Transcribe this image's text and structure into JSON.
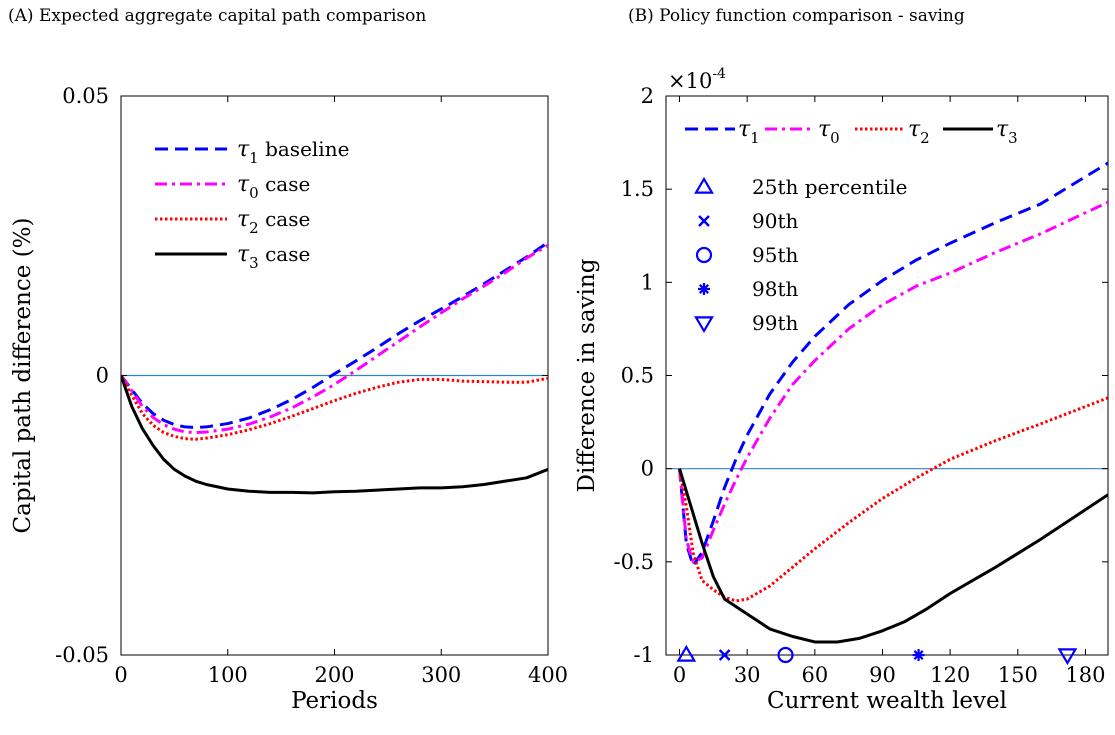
{
  "panels": {
    "a": {
      "title": "(A) Expected aggregate capital path comparison"
    },
    "b": {
      "title": "(B) Policy function comparison - saving"
    }
  },
  "chart_data": [
    {
      "type": "line",
      "title": "(A) Expected aggregate capital path comparison",
      "xlabel": "Periods",
      "ylabel": "Capital path difference (%)",
      "xlim": [
        0,
        400
      ],
      "ylim": [
        -0.05,
        0.05
      ],
      "xticks": [
        0,
        100,
        200,
        300,
        400
      ],
      "xtick_labels": [
        "0",
        "100",
        "200",
        "300",
        "400"
      ],
      "yticks": [
        -0.05,
        0,
        0.05
      ],
      "ytick_labels": [
        "-0.05",
        "0",
        "0.05"
      ],
      "grid": false,
      "legend_position": "upper-left",
      "reference_line": {
        "y": 0,
        "color": "#2E86C1"
      },
      "series": [
        {
          "name": "τ1 baseline",
          "legend_symbol": "τ",
          "legend_sub": "1",
          "legend_suffix": " baseline",
          "color": "#0000FF",
          "style": "dashed",
          "x": [
            0,
            10,
            20,
            30,
            40,
            50,
            60,
            70,
            80,
            100,
            120,
            140,
            160,
            180,
            200,
            220,
            240,
            260,
            280,
            300,
            320,
            340,
            360,
            380,
            400
          ],
          "y": [
            0,
            -0.0025,
            -0.005,
            -0.0068,
            -0.008,
            -0.0088,
            -0.0092,
            -0.0093,
            -0.0092,
            -0.0086,
            -0.0076,
            -0.0061,
            -0.0043,
            -0.0021,
            0.0003,
            0.0026,
            0.005,
            0.0075,
            0.0098,
            0.0119,
            0.0141,
            0.0164,
            0.0188,
            0.0212,
            0.0238
          ]
        },
        {
          "name": "τ0 case",
          "legend_symbol": "τ",
          "legend_sub": "0",
          "legend_suffix": " case",
          "color": "#FF00FF",
          "style": "dashdot",
          "x": [
            0,
            10,
            20,
            30,
            40,
            50,
            60,
            70,
            80,
            100,
            120,
            140,
            160,
            180,
            200,
            220,
            240,
            260,
            280,
            300,
            320,
            340,
            360,
            380,
            400
          ],
          "y": [
            0,
            -0.0027,
            -0.0055,
            -0.0075,
            -0.0088,
            -0.0096,
            -0.0101,
            -0.0102,
            -0.0101,
            -0.0096,
            -0.0087,
            -0.0074,
            -0.0058,
            -0.0038,
            -0.0016,
            0.0009,
            0.0035,
            0.0061,
            0.0087,
            0.0112,
            0.0137,
            0.016,
            0.0184,
            0.021,
            0.0233
          ]
        },
        {
          "name": "τ2 case",
          "legend_symbol": "τ",
          "legend_sub": "2",
          "legend_suffix": " case",
          "color": "#FF0000",
          "style": "dotted",
          "x": [
            0,
            10,
            20,
            30,
            40,
            50,
            60,
            70,
            80,
            100,
            120,
            140,
            160,
            180,
            200,
            220,
            240,
            260,
            280,
            300,
            320,
            340,
            360,
            380,
            400
          ],
          "y": [
            0,
            -0.0035,
            -0.0068,
            -0.0089,
            -0.0102,
            -0.0109,
            -0.0113,
            -0.0114,
            -0.0112,
            -0.0106,
            -0.0097,
            -0.0086,
            -0.0073,
            -0.0059,
            -0.0045,
            -0.0032,
            -0.0021,
            -0.0012,
            -0.0007,
            -0.0007,
            -0.001,
            -0.0011,
            -0.0012,
            -0.0012,
            -0.0005
          ]
        },
        {
          "name": "τ3 case",
          "legend_symbol": "τ",
          "legend_sub": "3",
          "legend_suffix": " case",
          "color": "#000000",
          "style": "solid",
          "x": [
            0,
            10,
            20,
            30,
            40,
            50,
            60,
            70,
            80,
            100,
            120,
            140,
            160,
            180,
            200,
            220,
            240,
            260,
            280,
            300,
            320,
            340,
            360,
            380,
            400
          ],
          "y": [
            0,
            -0.0055,
            -0.0095,
            -0.0125,
            -0.015,
            -0.0168,
            -0.018,
            -0.0189,
            -0.0195,
            -0.0203,
            -0.0207,
            -0.0209,
            -0.0209,
            -0.021,
            -0.0208,
            -0.0207,
            -0.0205,
            -0.0203,
            -0.0201,
            -0.0201,
            -0.0199,
            -0.0195,
            -0.0189,
            -0.0183,
            -0.0168
          ]
        }
      ]
    },
    {
      "type": "line",
      "title": "(B) Policy function comparison - saving",
      "xlabel": "Current wealth level",
      "ylabel": "Difference in saving",
      "y_multiplier": "×10",
      "y_multiplier_exp": "-4",
      "xlim": [
        -6,
        190
      ],
      "ylim": [
        -1,
        2
      ],
      "xticks": [
        0,
        30,
        60,
        90,
        120,
        150,
        180
      ],
      "xtick_labels": [
        "0",
        "30",
        "60",
        "90",
        "120",
        "150",
        "180"
      ],
      "yticks": [
        -1,
        -0.5,
        0,
        0.5,
        1,
        1.5,
        2
      ],
      "ytick_labels": [
        "-1",
        "-0.5",
        "0",
        "0.5",
        "1",
        "1.5",
        "2"
      ],
      "grid": false,
      "legend_position": "top",
      "reference_line": {
        "y": 0,
        "color": "#2E86C1"
      },
      "series": [
        {
          "name": "τ1",
          "legend_symbol": "τ",
          "legend_sub": "1",
          "legend_suffix": "",
          "color": "#0000FF",
          "style": "dashed",
          "x": [
            0,
            3,
            6,
            10,
            15,
            20,
            25,
            30,
            40,
            50,
            60,
            75,
            90,
            105,
            120,
            140,
            160,
            190
          ],
          "y": [
            0,
            -0.4,
            -0.52,
            -0.45,
            -0.28,
            -0.1,
            0.05,
            0.18,
            0.4,
            0.57,
            0.71,
            0.88,
            1.01,
            1.12,
            1.21,
            1.32,
            1.42,
            1.64
          ]
        },
        {
          "name": "τ0",
          "legend_symbol": "τ",
          "legend_sub": "0",
          "legend_suffix": "",
          "color": "#FF00FF",
          "style": "dashdot",
          "x": [
            0,
            3,
            6,
            10,
            15,
            20,
            25,
            30,
            40,
            50,
            60,
            75,
            90,
            105,
            120,
            140,
            160,
            190
          ],
          "y": [
            0,
            -0.38,
            -0.5,
            -0.48,
            -0.33,
            -0.19,
            -0.06,
            0.06,
            0.27,
            0.45,
            0.58,
            0.75,
            0.88,
            0.98,
            1.05,
            1.16,
            1.26,
            1.43
          ]
        },
        {
          "name": "τ2",
          "legend_symbol": "τ",
          "legend_sub": "2",
          "legend_suffix": "",
          "color": "#FF0000",
          "style": "dotted",
          "x": [
            0,
            3,
            6,
            10,
            15,
            20,
            25,
            30,
            40,
            50,
            60,
            75,
            90,
            105,
            120,
            140,
            160,
            190
          ],
          "y": [
            0,
            -0.2,
            -0.45,
            -0.6,
            -0.65,
            -0.69,
            -0.71,
            -0.7,
            -0.63,
            -0.53,
            -0.43,
            -0.29,
            -0.16,
            -0.05,
            0.05,
            0.15,
            0.24,
            0.38
          ]
        },
        {
          "name": "τ3",
          "legend_symbol": "τ",
          "legend_sub": "3",
          "legend_suffix": "",
          "color": "#000000",
          "style": "solid",
          "x": [
            0,
            5,
            10,
            15,
            20,
            30,
            40,
            50,
            60,
            70,
            80,
            90,
            100,
            110,
            120,
            130,
            140,
            160,
            190
          ],
          "y": [
            0,
            -0.2,
            -0.4,
            -0.58,
            -0.7,
            -0.78,
            -0.86,
            -0.9,
            -0.93,
            -0.93,
            -0.91,
            -0.87,
            -0.82,
            -0.75,
            -0.67,
            -0.6,
            -0.53,
            -0.38,
            -0.14
          ]
        }
      ],
      "percentile_markers": [
        {
          "label": "25th percentile",
          "symbol": "triangle-up",
          "x": 3,
          "y": -1
        },
        {
          "label": "90th",
          "symbol": "cross",
          "x": 20,
          "y": -1
        },
        {
          "label": "95th",
          "symbol": "circle",
          "x": 47,
          "y": -1
        },
        {
          "label": "98th",
          "symbol": "asterisk",
          "x": 106,
          "y": -1
        },
        {
          "label": "99th",
          "symbol": "triangle-down",
          "x": 172,
          "y": -1
        }
      ],
      "marker_color": "#0000FF"
    }
  ]
}
